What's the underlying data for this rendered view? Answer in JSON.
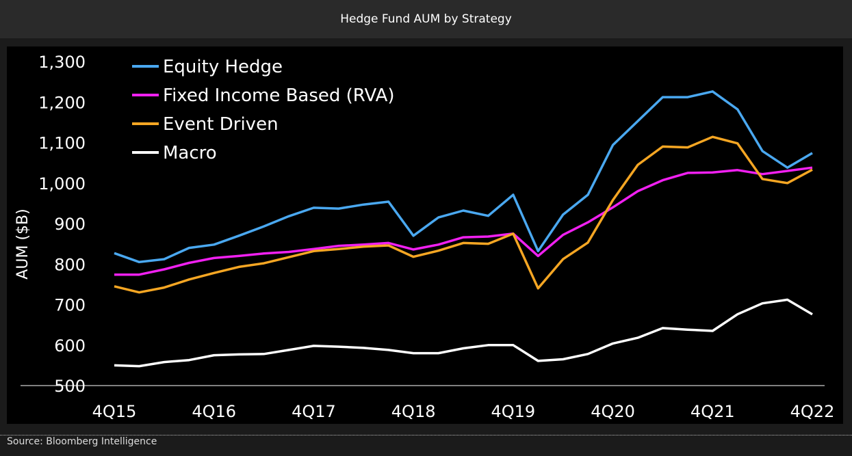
{
  "header": {
    "title": "Hedge Fund AUM by Strategy"
  },
  "footer": {
    "source": "Source: Bloomberg Intelligence"
  },
  "chart_data": {
    "type": "line",
    "title": "Hedge Fund AUM by Strategy",
    "xlabel": "",
    "ylabel": "AUM ($B)",
    "ylim": [
      500,
      1300
    ],
    "yticks": [
      500,
      600,
      700,
      800,
      900,
      1000,
      1100,
      1200,
      1300
    ],
    "ytick_labels": [
      "500",
      "600",
      "700",
      "800",
      "900",
      "1,000",
      "1,100",
      "1,200",
      "1,300"
    ],
    "xtick_labels": [
      "4Q15",
      "4Q16",
      "4Q17",
      "4Q18",
      "4Q19",
      "4Q20",
      "4Q21",
      "4Q22"
    ],
    "x": [
      "4Q15",
      "1Q16",
      "2Q16",
      "3Q16",
      "4Q16",
      "1Q17",
      "2Q17",
      "3Q17",
      "4Q17",
      "1Q18",
      "2Q18",
      "3Q18",
      "4Q18",
      "1Q19",
      "2Q19",
      "3Q19",
      "4Q19",
      "1Q20",
      "2Q20",
      "3Q20",
      "4Q20",
      "1Q21",
      "2Q21",
      "3Q21",
      "4Q21",
      "1Q22",
      "2Q22",
      "3Q22",
      "4Q22"
    ],
    "grid": false,
    "legend_placement": "top-left",
    "series": [
      {
        "name": "Equity Hedge",
        "color": "#4aa8f0",
        "values": [
          827,
          805,
          812,
          840,
          848,
          870,
          893,
          918,
          939,
          937,
          947,
          954,
          870,
          915,
          932,
          919,
          971,
          832,
          922,
          971,
          1094,
          1153,
          1212,
          1212,
          1226,
          1182,
          1079,
          1038,
          1074
        ]
      },
      {
        "name": "Fixed Income Based (RVA)",
        "color": "#f020f0",
        "values": [
          774,
          774,
          787,
          803,
          815,
          820,
          826,
          830,
          837,
          845,
          848,
          852,
          836,
          848,
          866,
          868,
          875,
          820,
          872,
          903,
          940,
          980,
          1007,
          1025,
          1026,
          1032,
          1022,
          1030,
          1038
        ]
      },
      {
        "name": "Event Driven",
        "color": "#f5a623",
        "values": [
          745,
          730,
          742,
          762,
          778,
          793,
          802,
          817,
          832,
          837,
          843,
          846,
          818,
          833,
          852,
          850,
          875,
          740,
          812,
          853,
          958,
          1045,
          1090,
          1088,
          1114,
          1098,
          1010,
          1000,
          1033
        ]
      },
      {
        "name": "Macro",
        "color": "#ffffff",
        "values": [
          550,
          548,
          558,
          563,
          575,
          577,
          578,
          588,
          598,
          596,
          593,
          588,
          580,
          580,
          592,
          600,
          600,
          561,
          565,
          578,
          604,
          618,
          642,
          638,
          635,
          676,
          703,
          712,
          676
        ]
      }
    ]
  }
}
